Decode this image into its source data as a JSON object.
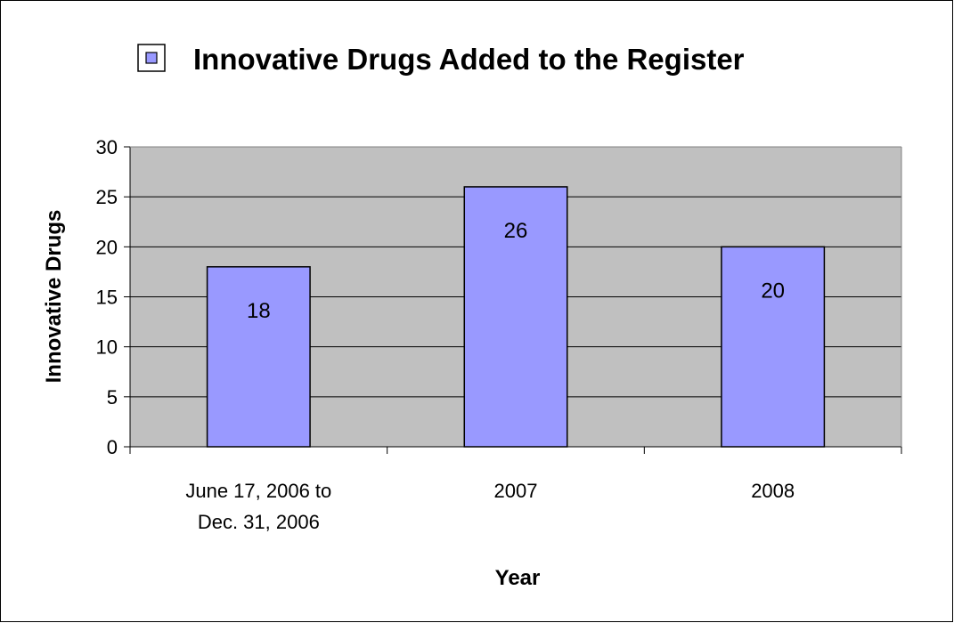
{
  "chart_data": {
    "type": "bar",
    "title": "",
    "categories": [
      [
        "June 17, 2006 to",
        "Dec. 31, 2006"
      ],
      [
        "2007"
      ],
      [
        "2008"
      ]
    ],
    "series": [
      {
        "name": "Innovative Drugs Added to the Register",
        "values": [
          18,
          26,
          20
        ]
      }
    ],
    "data_labels": [
      "18",
      "26",
      "20"
    ],
    "ylim": [
      0,
      30
    ],
    "yticks": [
      0,
      5,
      10,
      15,
      20,
      25,
      30
    ],
    "xlabel": "Year",
    "ylabel": "Innovative Drugs",
    "grid": true,
    "legend_position": "top",
    "colors": {
      "bar_fill": "#9999ff",
      "plot_background": "#c0c0c0",
      "gridline": "#000000",
      "border": "#000000"
    }
  }
}
